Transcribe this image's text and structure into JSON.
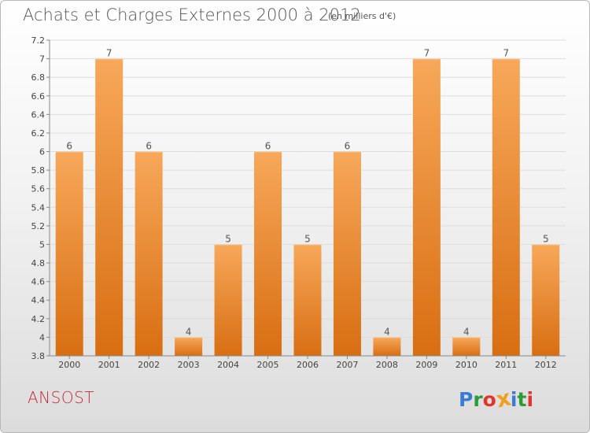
{
  "header": {
    "title": "Achats et Charges Externes 2000 à 2012",
    "subtitle": "(en milliers d'€)"
  },
  "footer": {
    "place": "ANSOST",
    "logo_text": "Proxiti"
  },
  "colors": {
    "bar_top": "#f7a85a",
    "bar_bottom": "#d86e12",
    "place": "#c8283c",
    "logo": [
      "#3a7bd5",
      "#2a9c3a",
      "#e0352b",
      "#f0a020",
      "#3a7bd5",
      "#2a9c3a",
      "#e0352b"
    ]
  },
  "chart_data": {
    "type": "bar",
    "categories": [
      "2000",
      "2001",
      "2002",
      "2003",
      "2004",
      "2005",
      "2006",
      "2007",
      "2008",
      "2009",
      "2010",
      "2011",
      "2012"
    ],
    "values": [
      6,
      7,
      6,
      4,
      5,
      6,
      5,
      6,
      4,
      7,
      4,
      7,
      5
    ],
    "data_labels": [
      "6",
      "7",
      "6",
      "4",
      "5",
      "6",
      "5",
      "6",
      "4",
      "7",
      "4",
      "7",
      "5"
    ],
    "yticks": [
      "3.8",
      "4",
      "4.2",
      "4.4",
      "4.6",
      "4.8",
      "5",
      "5.2",
      "5.4",
      "5.6",
      "5.8",
      "6",
      "6.2",
      "6.4",
      "6.6",
      "6.8",
      "7",
      "7.2"
    ],
    "ylim": [
      3.8,
      7.2
    ],
    "grid": true,
    "title": "Achats et Charges Externes 2000 à 2012",
    "xlabel": "",
    "ylabel": ""
  }
}
